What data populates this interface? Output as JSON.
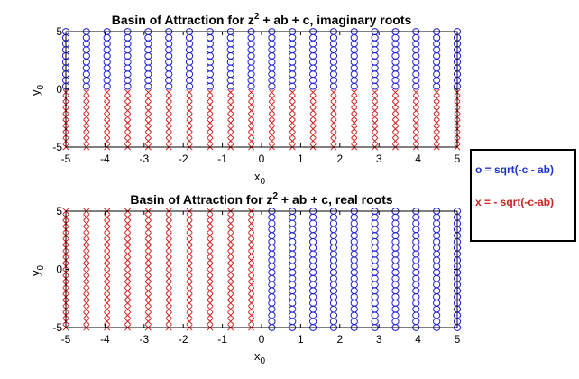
{
  "colors": {
    "blue": "#1f1fd0",
    "red": "#d42020",
    "axis": "#000000",
    "frame": "#000000"
  },
  "legend": {
    "entries": [
      {
        "label": "o = sqrt(-c - ab)",
        "color": "#2233cc"
      },
      {
        "label": "x = - sqrt(-c-ab)",
        "color": "#cc2222"
      }
    ]
  },
  "chart_data": [
    {
      "type": "scatter",
      "title_main": "Basin of Attraction for z",
      "title_sup": "2",
      "title_rest": " + ab + c, imaginary roots",
      "xlabel_main": "x",
      "xlabel_sub": "0",
      "ylabel_main": "y",
      "ylabel_sub": "0",
      "xlim": [
        -5,
        5
      ],
      "ylim": [
        -5,
        5
      ],
      "xticks": [
        -5,
        -4,
        -3,
        -2,
        -1,
        0,
        1,
        2,
        3,
        4,
        5
      ],
      "yticks": [
        -5,
        0,
        5
      ],
      "grid": false,
      "x": [
        -5,
        -4.474,
        -3.947,
        -3.421,
        -2.895,
        -2.368,
        -1.842,
        -1.316,
        -0.789,
        -0.263,
        0.263,
        0.789,
        1.316,
        1.842,
        2.368,
        2.895,
        3.421,
        3.947,
        4.474,
        5
      ],
      "y": [
        -5,
        -4.474,
        -3.947,
        -3.421,
        -2.895,
        -2.368,
        -1.842,
        -1.316,
        -0.789,
        -0.263,
        0.263,
        0.789,
        1.316,
        1.842,
        2.368,
        2.895,
        3.421,
        3.947,
        4.474,
        5
      ],
      "series": [
        {
          "marker": "o",
          "color": "#1f1fd0",
          "rule": "y > 0"
        },
        {
          "marker": "x",
          "color": "#d42020",
          "rule": "y < 0"
        }
      ]
    },
    {
      "type": "scatter",
      "title_main": "Basin of Attraction for z",
      "title_sup": "2",
      "title_rest": " + ab + c, real roots",
      "xlabel_main": "x",
      "xlabel_sub": "0",
      "ylabel_main": "y",
      "ylabel_sub": "0",
      "xlim": [
        -5,
        5
      ],
      "ylim": [
        -5,
        5
      ],
      "xticks": [
        -5,
        -4,
        -3,
        -2,
        -1,
        0,
        1,
        2,
        3,
        4,
        5
      ],
      "yticks": [
        -5,
        0,
        5
      ],
      "grid": false,
      "x": [
        -5,
        -4.474,
        -3.947,
        -3.421,
        -2.895,
        -2.368,
        -1.842,
        -1.316,
        -0.789,
        -0.263,
        0.263,
        0.789,
        1.316,
        1.842,
        2.368,
        2.895,
        3.421,
        3.947,
        4.474,
        5
      ],
      "y": [
        -5,
        -4.474,
        -3.947,
        -3.421,
        -2.895,
        -2.368,
        -1.842,
        -1.316,
        -0.789,
        -0.263,
        0.263,
        0.789,
        1.316,
        1.842,
        2.368,
        2.895,
        3.421,
        3.947,
        4.474,
        5
      ],
      "series": [
        {
          "marker": "o",
          "color": "#1f1fd0",
          "rule": "x > 0"
        },
        {
          "marker": "x",
          "color": "#d42020",
          "rule": "x < 0"
        }
      ]
    }
  ]
}
